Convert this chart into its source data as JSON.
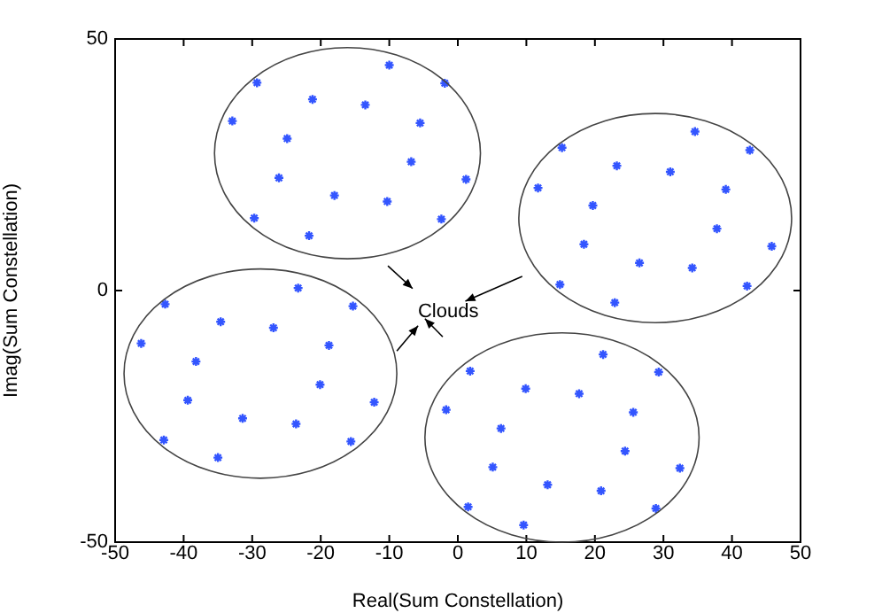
{
  "chart_data": {
    "type": "scatter",
    "xlabel": "Real(Sum Constellation)",
    "ylabel": "Imag(Sum Constellation)",
    "xlim": [
      -50,
      50
    ],
    "xticks": [
      -50,
      -40,
      -30,
      -20,
      -10,
      0,
      10,
      20,
      30,
      40,
      50
    ],
    "ylim": [
      -50,
      50
    ],
    "yticks": [
      -50,
      0,
      50
    ],
    "grid": false,
    "legend": false,
    "marker": "cross",
    "annotations": [
      "Clouds"
    ],
    "series": [
      {
        "color": "#3355ff",
        "x": [
          -29.3,
          -32.9,
          -21.2,
          -13.5,
          -24.9,
          -10.0,
          -1.9,
          -5.5,
          -6.8,
          1.2,
          -26.1,
          -18.0,
          -10.3,
          -29.7,
          -21.7,
          -2.4
        ],
        "values": [
          41.3,
          33.7,
          38.0,
          36.9,
          30.2,
          44.8,
          41.2,
          33.3,
          25.6,
          22.1,
          22.4,
          18.9,
          17.7,
          14.4,
          10.9,
          14.2
        ]
      },
      {
        "color": "#3355ff",
        "x": [
          34.6,
          15.2,
          42.6,
          23.2,
          31.0,
          11.7,
          39.1,
          19.7,
          37.8,
          45.8,
          18.4,
          26.5,
          34.2,
          14.9,
          42.2,
          22.9
        ],
        "values": [
          31.6,
          28.4,
          27.9,
          24.8,
          23.6,
          20.4,
          20.1,
          16.9,
          12.3,
          8.8,
          9.2,
          5.5,
          4.5,
          1.2,
          0.9,
          -2.4
        ]
      },
      {
        "color": "#3355ff",
        "x": [
          -23.3,
          -42.7,
          -15.3,
          -34.6,
          -26.9,
          -46.2,
          -18.8,
          -38.2,
          -20.1,
          -39.4,
          -12.2,
          -31.4,
          -23.6,
          -42.9,
          -15.6,
          -35.0
        ],
        "values": [
          0.5,
          -2.7,
          -3.1,
          -6.2,
          -7.4,
          -10.5,
          -10.9,
          -14.1,
          -18.7,
          -21.8,
          -22.2,
          -25.4,
          -26.5,
          -29.7,
          -30.0,
          -33.2
        ]
      },
      {
        "color": "#3355ff",
        "x": [
          1.8,
          -1.7,
          21.2,
          29.3,
          9.9,
          17.7,
          25.6,
          6.3,
          24.4,
          5.1,
          32.4,
          13.1,
          20.9,
          1.5,
          28.9,
          9.6
        ],
        "values": [
          -16.0,
          -23.7,
          -12.7,
          -16.2,
          -19.5,
          -20.5,
          -24.2,
          -27.4,
          -31.9,
          -35.1,
          -35.3,
          -38.6,
          -39.8,
          -43.0,
          -43.3,
          -46.6
        ]
      }
    ]
  }
}
